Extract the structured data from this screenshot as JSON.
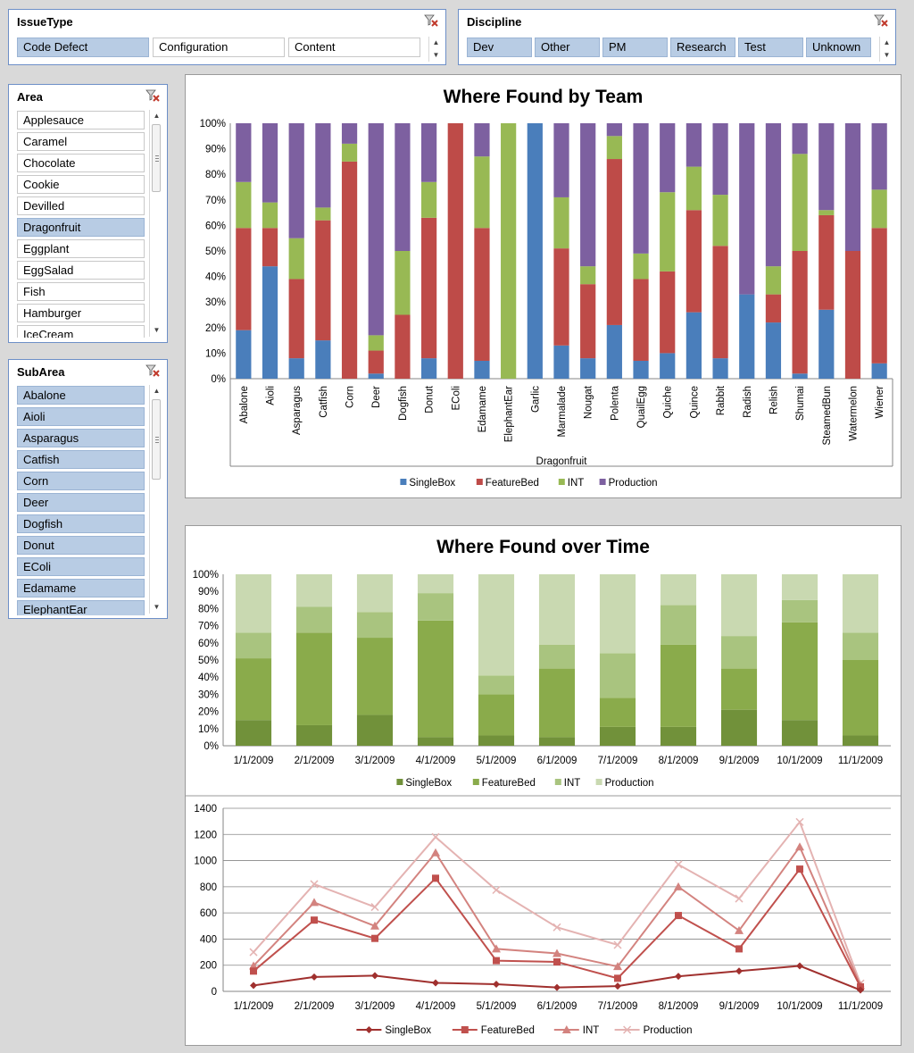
{
  "slicers": {
    "issuetype": {
      "title": "IssueType",
      "items": [
        {
          "label": "Code Defect",
          "selected": true
        },
        {
          "label": "Configuration",
          "selected": false
        },
        {
          "label": "Content",
          "selected": false
        }
      ]
    },
    "discipline": {
      "title": "Discipline",
      "items": [
        {
          "label": "Dev",
          "selected": true
        },
        {
          "label": "Other",
          "selected": true
        },
        {
          "label": "PM",
          "selected": true
        },
        {
          "label": "Research",
          "selected": true
        },
        {
          "label": "Test",
          "selected": true
        },
        {
          "label": "Unknown",
          "selected": true
        }
      ]
    },
    "area": {
      "title": "Area",
      "items": [
        {
          "label": "Applesauce",
          "selected": false
        },
        {
          "label": "Caramel",
          "selected": false
        },
        {
          "label": "Chocolate",
          "selected": false
        },
        {
          "label": "Cookie",
          "selected": false
        },
        {
          "label": "Devilled",
          "selected": false
        },
        {
          "label": "Dragonfruit",
          "selected": true
        },
        {
          "label": "Eggplant",
          "selected": false
        },
        {
          "label": "EggSalad",
          "selected": false
        },
        {
          "label": "Fish",
          "selected": false
        },
        {
          "label": "Hamburger",
          "selected": false
        },
        {
          "label": "IceCream",
          "selected": false
        }
      ]
    },
    "subarea": {
      "title": "SubArea",
      "items": [
        {
          "label": "Abalone",
          "selected": true
        },
        {
          "label": "Aioli",
          "selected": true
        },
        {
          "label": "Asparagus",
          "selected": true
        },
        {
          "label": "Catfish",
          "selected": true
        },
        {
          "label": "Corn",
          "selected": true
        },
        {
          "label": "Deer",
          "selected": true
        },
        {
          "label": "Dogfish",
          "selected": true
        },
        {
          "label": "Donut",
          "selected": true
        },
        {
          "label": "EColi",
          "selected": true
        },
        {
          "label": "Edamame",
          "selected": true
        },
        {
          "label": "ElephantEar",
          "selected": true
        }
      ]
    }
  },
  "colors": {
    "team": {
      "SingleBox": "#4a7ebb",
      "FeatureBed": "#be4b48",
      "INT": "#98b954",
      "Production": "#7d60a0"
    },
    "time": {
      "SingleBox": "#71913a",
      "FeatureBed": "#8aab4b",
      "INT": "#a9c47f",
      "Production": "#c9d9b1"
    },
    "line": {
      "SingleBox": "#a0302e",
      "FeatureBed": "#c0504d",
      "INT": "#d3837f",
      "Production": "#e4b3b2"
    }
  },
  "chart_data": [
    {
      "type": "bar",
      "stacked_percent": true,
      "title": "Where Found by Team",
      "xlabel": "Dragonfruit",
      "ylim": [
        0,
        100
      ],
      "yticks": [
        "0%",
        "10%",
        "20%",
        "30%",
        "40%",
        "50%",
        "60%",
        "70%",
        "80%",
        "90%",
        "100%"
      ],
      "legend_position": "bottom",
      "categories": [
        "Abalone",
        "Aioli",
        "Asparagus",
        "Catfish",
        "Corn",
        "Deer",
        "Dogfish",
        "Donut",
        "EColi",
        "Edamame",
        "ElephantEar",
        "Garlic",
        "Marmalade",
        "Nougat",
        "Polenta",
        "QuailEgg",
        "Quiche",
        "Quince",
        "Rabbit",
        "Radish",
        "Relish",
        "Shumai",
        "SteamedBun",
        "Watermelon",
        "Wiener"
      ],
      "series": [
        {
          "name": "SingleBox",
          "values": [
            19,
            44,
            8,
            15,
            0,
            2,
            0,
            8,
            0,
            7,
            0,
            100,
            13,
            8,
            21,
            7,
            10,
            26,
            8,
            33,
            22,
            2,
            27,
            0,
            6
          ]
        },
        {
          "name": "FeatureBed",
          "values": [
            40,
            15,
            31,
            47,
            85,
            9,
            25,
            55,
            100,
            52,
            0,
            0,
            38,
            29,
            65,
            32,
            32,
            40,
            44,
            0,
            11,
            48,
            37,
            50,
            53
          ]
        },
        {
          "name": "INT",
          "values": [
            18,
            10,
            16,
            5,
            7,
            6,
            25,
            14,
            0,
            28,
            100,
            0,
            20,
            7,
            9,
            10,
            31,
            17,
            20,
            0,
            11,
            38,
            2,
            0,
            15
          ]
        },
        {
          "name": "Production",
          "values": [
            23,
            31,
            45,
            33,
            8,
            83,
            50,
            23,
            0,
            13,
            0,
            0,
            29,
            56,
            5,
            51,
            27,
            17,
            28,
            67,
            56,
            12,
            34,
            50,
            26
          ]
        }
      ]
    },
    {
      "type": "bar",
      "stacked_percent": true,
      "title": "Where Found over Time",
      "ylim": [
        0,
        100
      ],
      "yticks": [
        "0%",
        "10%",
        "20%",
        "30%",
        "40%",
        "50%",
        "60%",
        "70%",
        "80%",
        "90%",
        "100%"
      ],
      "legend_position": "bottom",
      "categories": [
        "1/1/2009",
        "2/1/2009",
        "3/1/2009",
        "4/1/2009",
        "5/1/2009",
        "6/1/2009",
        "7/1/2009",
        "8/1/2009",
        "9/1/2009",
        "10/1/2009",
        "11/1/2009"
      ],
      "series": [
        {
          "name": "SingleBox",
          "values": [
            15,
            12,
            18,
            5,
            6,
            5,
            11,
            11,
            21,
            15,
            6
          ]
        },
        {
          "name": "FeatureBed",
          "values": [
            36,
            54,
            45,
            68,
            24,
            40,
            17,
            48,
            24,
            57,
            44
          ]
        },
        {
          "name": "INT",
          "values": [
            15,
            15,
            15,
            16,
            11,
            14,
            26,
            23,
            19,
            13,
            16
          ]
        },
        {
          "name": "Production",
          "values": [
            34,
            19,
            22,
            11,
            59,
            41,
            46,
            18,
            36,
            15,
            34
          ]
        }
      ]
    },
    {
      "type": "line",
      "ylim": [
        0,
        1400
      ],
      "yticks": [
        "0",
        "200",
        "400",
        "600",
        "800",
        "1000",
        "1200",
        "1400"
      ],
      "legend_position": "bottom",
      "categories": [
        "1/1/2009",
        "2/1/2009",
        "3/1/2009",
        "4/1/2009",
        "5/1/2009",
        "6/1/2009",
        "7/1/2009",
        "8/1/2009",
        "9/1/2009",
        "10/1/2009",
        "11/1/2009"
      ],
      "series": [
        {
          "name": "SingleBox",
          "marker": "diamond",
          "values": [
            45,
            110,
            120,
            65,
            55,
            30,
            40,
            115,
            155,
            195,
            10
          ]
        },
        {
          "name": "FeatureBed",
          "marker": "square",
          "values": [
            155,
            545,
            405,
            865,
            235,
            225,
            100,
            580,
            325,
            935,
            35
          ]
        },
        {
          "name": "INT",
          "marker": "triangle",
          "values": [
            195,
            680,
            500,
            1060,
            325,
            290,
            190,
            800,
            465,
            1105,
            45
          ]
        },
        {
          "name": "Production",
          "marker": "x",
          "values": [
            300,
            820,
            645,
            1180,
            775,
            490,
            355,
            970,
            710,
            1295,
            60
          ]
        }
      ]
    }
  ]
}
